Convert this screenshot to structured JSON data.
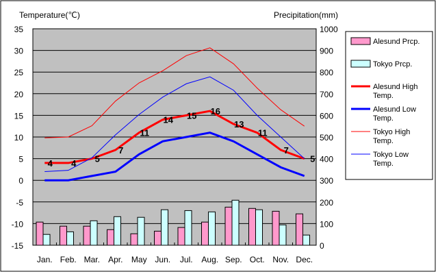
{
  "chart_data": {
    "type": "bar+line",
    "categories": [
      "Jan.",
      "Feb.",
      "Mar.",
      "Apr.",
      "May",
      "Jun.",
      "Jul.",
      "Aug.",
      "Sep.",
      "Oct.",
      "Nov.",
      "Dec."
    ],
    "left_axis": {
      "label": "Temperature(℃)",
      "range": [
        -15,
        35
      ],
      "ticks": [
        -15,
        -10,
        -5,
        0,
        5,
        10,
        15,
        20,
        25,
        30,
        35
      ]
    },
    "right_axis": {
      "label": "Precipitation(mm)",
      "range": [
        0,
        1000
      ],
      "ticks": [
        0,
        100,
        200,
        300,
        400,
        500,
        600,
        700,
        800,
        900,
        1000
      ]
    },
    "grid": true,
    "legend_placement": "right",
    "bars": [
      {
        "name": "Alesund Prcp.",
        "color": "#ff99cc",
        "values": [
          107,
          88,
          88,
          72,
          53,
          65,
          82,
          107,
          176,
          170,
          157,
          145
        ]
      },
      {
        "name": "Tokyo Prcp.",
        "color": "#ccffff",
        "values": [
          50,
          62,
          113,
          132,
          129,
          164,
          160,
          154,
          208,
          164,
          94,
          47
        ]
      }
    ],
    "lines": [
      {
        "name": "Alesund High Temp.",
        "color": "#ff0000",
        "width": 3,
        "values": [
          4,
          4,
          5,
          7,
          11,
          14,
          15,
          16,
          13,
          11,
          7,
          5
        ],
        "labels": [
          "4",
          "4",
          "5",
          "7",
          "11",
          "14",
          "15",
          "16",
          "13",
          "11",
          "7",
          "5"
        ]
      },
      {
        "name": "Alesund Low Temp.",
        "color": "#0000ff",
        "width": 3,
        "values": [
          0,
          0,
          1,
          2,
          6,
          9,
          10,
          11,
          9,
          6,
          3,
          1
        ]
      },
      {
        "name": "Tokyo High Temp.",
        "color": "#ff0000",
        "width": 1,
        "values": [
          9.8,
          10,
          12.6,
          18.3,
          22.5,
          25.3,
          28.8,
          30.6,
          26.9,
          21.3,
          16.3,
          12.5
        ]
      },
      {
        "name": "Tokyo Low Temp.",
        "color": "#0000ff",
        "width": 1,
        "values": [
          2,
          2.3,
          5.2,
          10.5,
          15.2,
          19.2,
          22.3,
          23.9,
          20.8,
          15,
          10,
          5
        ]
      }
    ]
  }
}
